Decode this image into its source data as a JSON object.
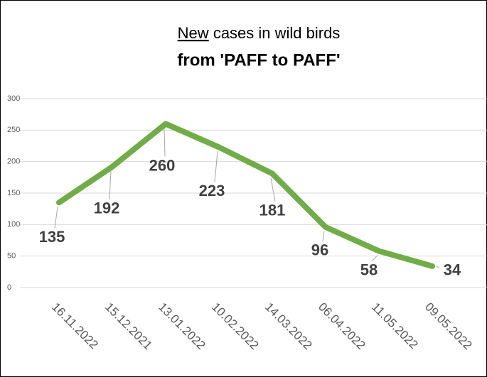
{
  "chart_data": {
    "type": "line",
    "title": [
      "New",
      "cases in wild birds",
      "from 'PAFF to PAFF'"
    ],
    "categories": [
      "16.11.2022",
      "15.12.2021",
      "13.01.2022",
      "10.02.2022",
      "14.03.2022",
      "06.04.2022",
      "11.05.2022",
      "09.05.2022"
    ],
    "values": [
      135,
      192,
      260,
      223,
      181,
      96,
      58,
      34
    ],
    "color": "#70ad47",
    "ylim": [
      0,
      300
    ],
    "yticks": [
      0,
      50,
      100,
      150,
      200,
      250,
      300
    ],
    "grid": true
  }
}
